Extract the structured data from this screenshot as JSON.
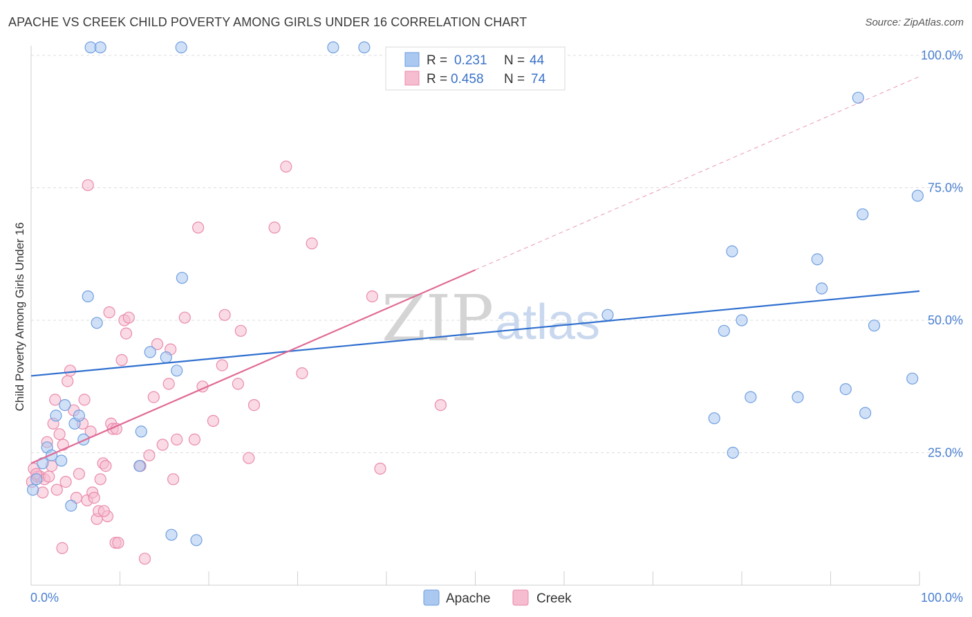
{
  "title": "APACHE VS CREEK CHILD POVERTY AMONG GIRLS UNDER 16 CORRELATION CHART",
  "source": "Source: ZipAtlas.com",
  "watermark": {
    "part1": "ZIP",
    "part2": "atlas"
  },
  "colors": {
    "apache_fill": "#aac8f0",
    "apache_stroke": "#6f9ee0",
    "apache_line": "#2f6fcf",
    "creek_fill": "#f6bcd0",
    "creek_stroke": "#e98aab",
    "creek_line": "#e06a95",
    "grid": "#dcdcdc",
    "axis_label": "#4a7fd0"
  },
  "legend_top": {
    "rows": [
      {
        "r_label": "R =",
        "r_value": "0.231",
        "n_label": "N =",
        "n_value": "44",
        "series": "Apache"
      },
      {
        "r_label": "R =",
        "r_value": "0.458",
        "n_label": "N =",
        "n_value": "74",
        "series": "Creek"
      }
    ]
  },
  "legend_bottom": [
    "Apache",
    "Creek"
  ],
  "chart_data": {
    "type": "scatter",
    "title": "APACHE VS CREEK CHILD POVERTY AMONG GIRLS UNDER 16 CORRELATION CHART",
    "xlabel": "",
    "ylabel": "Child Poverty Among Girls Under 16",
    "xlim": [
      0,
      100
    ],
    "ylim": [
      0,
      100
    ],
    "x_tick_labels": [
      "0.0%",
      "100.0%"
    ],
    "y_tick_labels": [
      "25.0%",
      "50.0%",
      "75.0%",
      "100.0%"
    ],
    "y_ticks": [
      25,
      50,
      75,
      100
    ],
    "grid": true,
    "legend_placement": "top-center",
    "series": [
      {
        "name": "Apache",
        "r": 0.231,
        "n": 44,
        "trend": {
          "x0": 0,
          "y0": 39.5,
          "x1": 100,
          "y1": 55.5,
          "style": "solid"
        },
        "points": [
          [
            0.2,
            18
          ],
          [
            0.6,
            20
          ],
          [
            1.3,
            23
          ],
          [
            1.8,
            26
          ],
          [
            2.3,
            24.5
          ],
          [
            3.4,
            23.5
          ],
          [
            2.8,
            32
          ],
          [
            3.8,
            34
          ],
          [
            4.9,
            30.5
          ],
          [
            5.4,
            32
          ],
          [
            5.9,
            27.5
          ],
          [
            4.5,
            15
          ],
          [
            6.4,
            54.5
          ],
          [
            7.4,
            49.5
          ],
          [
            6.7,
            101.5
          ],
          [
            7.8,
            101.5
          ],
          [
            16.9,
            101.5
          ],
          [
            34.0,
            101.5
          ],
          [
            37.5,
            101.5
          ],
          [
            12.2,
            22.5
          ],
          [
            12.4,
            29
          ],
          [
            13.4,
            44
          ],
          [
            15.2,
            43
          ],
          [
            16.4,
            40.5
          ],
          [
            17.0,
            58
          ],
          [
            15.8,
            9.5
          ],
          [
            18.6,
            8.5
          ],
          [
            64.9,
            51
          ],
          [
            78.9,
            63
          ],
          [
            78.0,
            48
          ],
          [
            80.0,
            50
          ],
          [
            81.0,
            35.5
          ],
          [
            86.3,
            35.5
          ],
          [
            88.5,
            61.5
          ],
          [
            89.0,
            56
          ],
          [
            91.7,
            37
          ],
          [
            93.1,
            92
          ],
          [
            93.6,
            70
          ],
          [
            93.9,
            32.5
          ],
          [
            94.9,
            49
          ],
          [
            99.2,
            39
          ],
          [
            99.8,
            73.5
          ],
          [
            76.9,
            31.5
          ],
          [
            79.0,
            25
          ]
        ]
      },
      {
        "name": "Creek",
        "r": 0.458,
        "n": 74,
        "trend": {
          "x0": 0,
          "y0": 23,
          "x1": 50,
          "y1": 59.5,
          "style": "solid",
          "extend_to": {
            "x": 100,
            "y": 96
          }
        },
        "points": [
          [
            0.1,
            19.5
          ],
          [
            0.3,
            22
          ],
          [
            0.7,
            20.5
          ],
          [
            1.0,
            20.5
          ],
          [
            1.3,
            17.5
          ],
          [
            1.5,
            20
          ],
          [
            1.8,
            27
          ],
          [
            2.0,
            20.5
          ],
          [
            2.3,
            22.5
          ],
          [
            2.5,
            30.5
          ],
          [
            2.7,
            35
          ],
          [
            2.9,
            18
          ],
          [
            3.2,
            28.5
          ],
          [
            3.5,
            7
          ],
          [
            3.6,
            26.5
          ],
          [
            3.9,
            19.5
          ],
          [
            4.1,
            38.5
          ],
          [
            4.4,
            40.5
          ],
          [
            4.8,
            33
          ],
          [
            5.1,
            16.5
          ],
          [
            5.4,
            21
          ],
          [
            5.8,
            30.5
          ],
          [
            6.0,
            35
          ],
          [
            6.3,
            16
          ],
          [
            6.7,
            29
          ],
          [
            6.9,
            17.5
          ],
          [
            7.1,
            16.5
          ],
          [
            7.4,
            12.5
          ],
          [
            7.6,
            14
          ],
          [
            7.8,
            20
          ],
          [
            8.1,
            23
          ],
          [
            8.4,
            22.5
          ],
          [
            8.6,
            13
          ],
          [
            8.8,
            51.5
          ],
          [
            9.0,
            30.5
          ],
          [
            9.2,
            29.5
          ],
          [
            9.5,
            8
          ],
          [
            9.8,
            8
          ],
          [
            10.2,
            42.5
          ],
          [
            10.5,
            50
          ],
          [
            10.7,
            47.5
          ],
          [
            11.0,
            50.5
          ],
          [
            12.3,
            22.5
          ],
          [
            12.8,
            5
          ],
          [
            13.3,
            24.5
          ],
          [
            13.8,
            35.5
          ],
          [
            14.2,
            45.5
          ],
          [
            14.8,
            26.5
          ],
          [
            15.5,
            38
          ],
          [
            15.7,
            44.5
          ],
          [
            16.0,
            20
          ],
          [
            16.4,
            27.5
          ],
          [
            17.3,
            50.5
          ],
          [
            18.4,
            27.5
          ],
          [
            18.8,
            67.5
          ],
          [
            19.3,
            37.5
          ],
          [
            20.5,
            31
          ],
          [
            21.5,
            41.5
          ],
          [
            21.8,
            51
          ],
          [
            23.3,
            38
          ],
          [
            23.6,
            48
          ],
          [
            24.5,
            24
          ],
          [
            25.1,
            34
          ],
          [
            27.4,
            67.5
          ],
          [
            28.7,
            79
          ],
          [
            30.5,
            40
          ],
          [
            31.6,
            64.5
          ],
          [
            38.4,
            54.5
          ],
          [
            39.3,
            22
          ],
          [
            46.1,
            34
          ],
          [
            6.4,
            75.5
          ],
          [
            9.6,
            29.5
          ],
          [
            8.2,
            14
          ],
          [
            0.6,
            21
          ]
        ]
      }
    ]
  }
}
